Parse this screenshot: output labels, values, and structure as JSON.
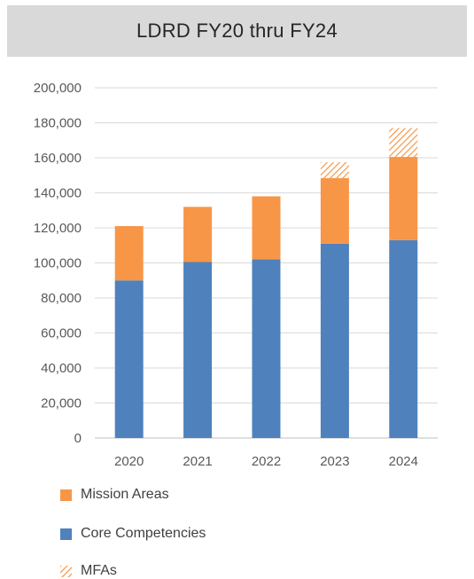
{
  "chart_data": {
    "type": "bar",
    "stacked": true,
    "title": "LDRD FY20 thru FY24",
    "categories": [
      "2020",
      "2021",
      "2022",
      "2023",
      "2024"
    ],
    "series": [
      {
        "name": "Core Competencies",
        "values": [
          90000,
          100500,
          102000,
          111000,
          113000
        ],
        "color": "#4f81bd",
        "pattern": "solid"
      },
      {
        "name": "Mission Areas",
        "values": [
          31000,
          31500,
          36000,
          37500,
          47500
        ],
        "color": "#f79646",
        "pattern": "solid"
      },
      {
        "name": "MFAs",
        "values": [
          0,
          0,
          0,
          9000,
          16500
        ],
        "color": "#f79646",
        "pattern": "hatch"
      }
    ],
    "ylim": [
      0,
      200000
    ],
    "yticks": [
      0,
      20000,
      40000,
      60000,
      80000,
      100000,
      120000,
      140000,
      160000,
      180000,
      200000
    ],
    "ytick_labels": [
      "0",
      "20,000",
      "40,000",
      "60,000",
      "80,000",
      "100,000",
      "120,000",
      "140,000",
      "160,000",
      "180,000",
      "200,000"
    ],
    "grid": true,
    "legend_position": "bottom",
    "legend_order": [
      "Mission Areas",
      "Core Competencies",
      "MFAs"
    ]
  }
}
